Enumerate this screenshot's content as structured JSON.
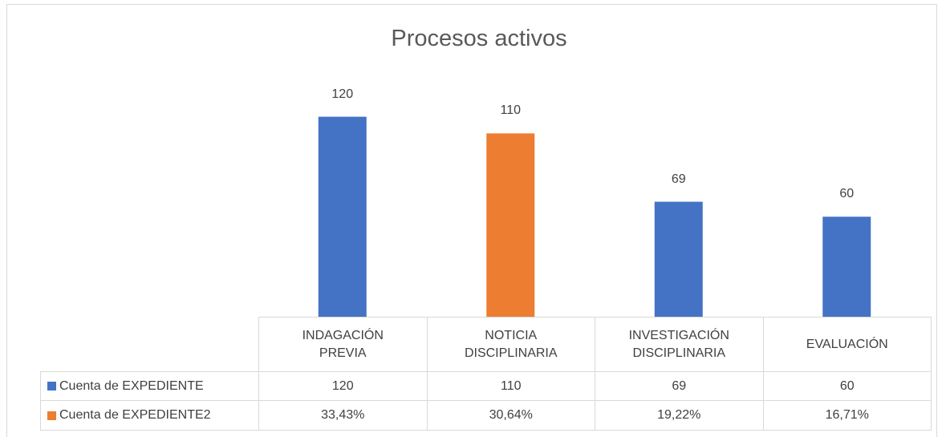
{
  "chart_data": {
    "type": "bar",
    "title": "Procesos activos",
    "categories": [
      "INDAGACIÓN PREVIA",
      "NOTICIA DISCIPLINARIA",
      "INVESTIGACIÓN DISCIPLINARIA",
      "EVALUACIÓN"
    ],
    "series": [
      {
        "name": "Cuenta de EXPEDIENTE",
        "color": "#4472c4",
        "point_colors": [
          "#4472c4",
          "#ed7d31",
          "#4472c4",
          "#4472c4"
        ],
        "values": [
          120,
          110,
          69,
          60
        ]
      },
      {
        "name": "Cuenta de EXPEDIENTE2",
        "color": "#ed7d31",
        "values": [
          33.43,
          30.64,
          19.22,
          16.71
        ],
        "value_labels": [
          "33,43%",
          "30,64%",
          "19,22%",
          "16,71%"
        ]
      }
    ],
    "ylim": [
      0,
      140
    ],
    "grid": false,
    "data_table": true
  }
}
